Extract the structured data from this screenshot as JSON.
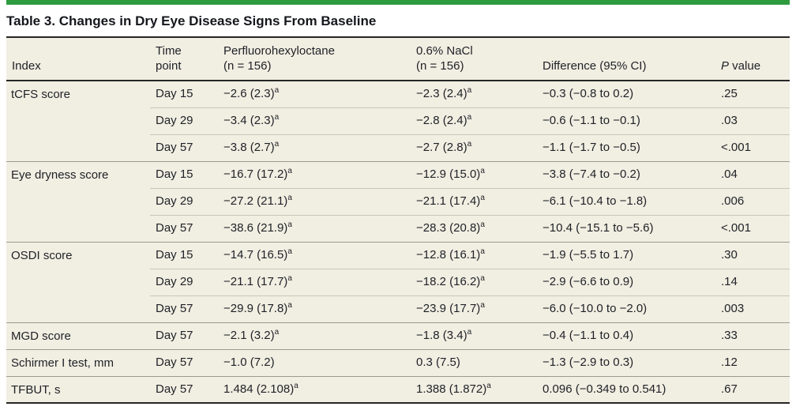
{
  "title": "Table 3. Changes in Dry Eye Disease Signs From Baseline",
  "colors": {
    "accent_green": "#2e9b3e",
    "table_background": "#f1eee2",
    "text_ink": "#1e2126"
  },
  "table": {
    "columns": [
      {
        "id": "index",
        "lines": [
          "Index"
        ]
      },
      {
        "id": "time-point",
        "lines": [
          "Time",
          "point"
        ]
      },
      {
        "id": "perfluorohexyloctane",
        "lines": [
          "Perfluorohexyloctane",
          "(n = 156)"
        ]
      },
      {
        "id": "nacl",
        "lines": [
          "0.6% NaCl",
          "(n = 156)"
        ]
      },
      {
        "id": "difference",
        "lines": [
          "Difference (95% CI)"
        ]
      },
      {
        "id": "p-value",
        "lines": [
          "P value"
        ],
        "italic_first": true
      }
    ],
    "footnote_marker": "a",
    "groups": [
      {
        "index": "tCFS score",
        "rows": [
          {
            "time": "Day 15",
            "pfh": "−2.6 (2.3)^a",
            "nacl": "−2.3 (2.4)^a",
            "diff": "−0.3 (−0.8 to 0.2)",
            "p": ".25"
          },
          {
            "time": "Day 29",
            "pfh": "−3.4 (2.3)^a",
            "nacl": "−2.8 (2.4)^a",
            "diff": "−0.6 (−1.1 to −0.1)",
            "p": ".03"
          },
          {
            "time": "Day 57",
            "pfh": "−3.8 (2.7)^a",
            "nacl": "−2.7 (2.8)^a",
            "diff": "−1.1 (−1.7 to −0.5)",
            "p": "<.001"
          }
        ]
      },
      {
        "index": "Eye dryness score",
        "rows": [
          {
            "time": "Day 15",
            "pfh": "−16.7 (17.2)^a",
            "nacl": "−12.9 (15.0)^a",
            "diff": "−3.8 (−7.4 to −0.2)",
            "p": ".04"
          },
          {
            "time": "Day 29",
            "pfh": "−27.2 (21.1)^a",
            "nacl": "−21.1 (17.4)^a",
            "diff": "−6.1 (−10.4 to −1.8)",
            "p": ".006"
          },
          {
            "time": "Day 57",
            "pfh": "−38.6 (21.9)^a",
            "nacl": "−28.3 (20.8)^a",
            "diff": "−10.4 (−15.1 to −5.6)",
            "p": "<.001"
          }
        ]
      },
      {
        "index": "OSDI score",
        "rows": [
          {
            "time": "Day 15",
            "pfh": "−14.7 (16.5)^a",
            "nacl": "−12.8 (16.1)^a",
            "diff": "−1.9 (−5.5 to 1.7)",
            "p": ".30"
          },
          {
            "time": "Day 29",
            "pfh": "−21.1 (17.7)^a",
            "nacl": "−18.2 (16.2)^a",
            "diff": "−2.9 (−6.6 to 0.9)",
            "p": ".14"
          },
          {
            "time": "Day 57",
            "pfh": "−29.9 (17.8)^a",
            "nacl": "−23.9 (17.7)^a",
            "diff": "−6.0 (−10.0 to −2.0)",
            "p": ".003"
          }
        ]
      },
      {
        "index": "MGD score",
        "rows": [
          {
            "time": "Day 57",
            "pfh": "−2.1 (3.2)^a",
            "nacl": "−1.8 (3.4)^a",
            "diff": "−0.4 (−1.1 to 0.4)",
            "p": ".33"
          }
        ]
      },
      {
        "index": "Schirmer I test, mm",
        "rows": [
          {
            "time": "Day 57",
            "pfh": "−1.0 (7.2)",
            "nacl": "0.3 (7.5)",
            "diff": "−1.3 (−2.9 to 0.3)",
            "p": ".12"
          }
        ]
      },
      {
        "index": "TFBUT, s",
        "rows": [
          {
            "time": "Day 57",
            "pfh": "1.484 (2.108)^a",
            "nacl": "1.388 (1.872)^a",
            "diff": "0.096 (−0.349 to 0.541)",
            "p": ".67"
          }
        ]
      }
    ]
  }
}
